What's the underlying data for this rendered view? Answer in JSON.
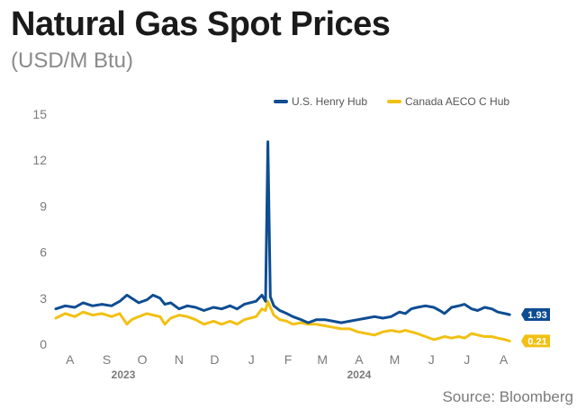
{
  "chart_data": {
    "type": "line",
    "title": "Natural Gas Spot Prices",
    "subtitle": "(USD/M Btu)",
    "source": "Source: Bloomberg",
    "ylim": [
      0,
      15
    ],
    "y_ticks": [
      0,
      3,
      6,
      9,
      12,
      15
    ],
    "y_tick_labels": [
      "0",
      "3",
      "6",
      "9",
      "12",
      "15"
    ],
    "x_tick_labels": [
      "A",
      "S",
      "O",
      "N",
      "D",
      "J",
      "F",
      "M",
      "A",
      "M",
      "J",
      "J",
      "A"
    ],
    "x_tick_dates": [
      "2023-08-01",
      "2023-09-01",
      "2023-10-01",
      "2023-11-01",
      "2023-12-01",
      "2024-01-01",
      "2024-02-01",
      "2024-03-01",
      "2024-04-01",
      "2024-05-01",
      "2024-06-01",
      "2024-07-01",
      "2024-08-01"
    ],
    "year_labels": [
      {
        "label": "2023",
        "date": "2023-09-15"
      },
      {
        "label": "2024",
        "date": "2024-04-01"
      }
    ],
    "x_range": [
      "2023-07-20",
      "2024-08-15"
    ],
    "legend_position": "top-right",
    "grid": false,
    "series": [
      {
        "name": "U.S. Henry Hub",
        "color": "#0e4d92",
        "end_label": "1.93",
        "points": [
          [
            "2023-07-20",
            2.3
          ],
          [
            "2023-07-28",
            2.5
          ],
          [
            "2023-08-05",
            2.4
          ],
          [
            "2023-08-12",
            2.7
          ],
          [
            "2023-08-20",
            2.5
          ],
          [
            "2023-08-28",
            2.6
          ],
          [
            "2023-09-05",
            2.5
          ],
          [
            "2023-09-12",
            2.8
          ],
          [
            "2023-09-18",
            3.2
          ],
          [
            "2023-09-22",
            3.0
          ],
          [
            "2023-09-28",
            2.7
          ],
          [
            "2023-10-05",
            2.9
          ],
          [
            "2023-10-10",
            3.2
          ],
          [
            "2023-10-16",
            3.0
          ],
          [
            "2023-10-20",
            2.6
          ],
          [
            "2023-10-25",
            2.7
          ],
          [
            "2023-11-01",
            2.3
          ],
          [
            "2023-11-08",
            2.5
          ],
          [
            "2023-11-15",
            2.4
          ],
          [
            "2023-11-22",
            2.2
          ],
          [
            "2023-11-30",
            2.4
          ],
          [
            "2023-12-07",
            2.3
          ],
          [
            "2023-12-14",
            2.5
          ],
          [
            "2023-12-20",
            2.3
          ],
          [
            "2023-12-26",
            2.6
          ],
          [
            "2024-01-05",
            2.8
          ],
          [
            "2024-01-10",
            3.2
          ],
          [
            "2024-01-13",
            2.8
          ],
          [
            "2024-01-15",
            13.2
          ],
          [
            "2024-01-17",
            3.1
          ],
          [
            "2024-01-20",
            2.5
          ],
          [
            "2024-01-25",
            2.2
          ],
          [
            "2024-01-31",
            2.0
          ],
          [
            "2024-02-05",
            1.8
          ],
          [
            "2024-02-12",
            1.6
          ],
          [
            "2024-02-18",
            1.4
          ],
          [
            "2024-02-25",
            1.6
          ],
          [
            "2024-03-03",
            1.6
          ],
          [
            "2024-03-10",
            1.5
          ],
          [
            "2024-03-17",
            1.4
          ],
          [
            "2024-03-24",
            1.5
          ],
          [
            "2024-03-31",
            1.6
          ],
          [
            "2024-04-07",
            1.7
          ],
          [
            "2024-04-14",
            1.8
          ],
          [
            "2024-04-21",
            1.7
          ],
          [
            "2024-04-28",
            1.8
          ],
          [
            "2024-05-05",
            2.1
          ],
          [
            "2024-05-10",
            2.0
          ],
          [
            "2024-05-15",
            2.3
          ],
          [
            "2024-05-20",
            2.4
          ],
          [
            "2024-05-27",
            2.5
          ],
          [
            "2024-06-03",
            2.4
          ],
          [
            "2024-06-08",
            2.2
          ],
          [
            "2024-06-12",
            2.0
          ],
          [
            "2024-06-18",
            2.4
          ],
          [
            "2024-06-24",
            2.5
          ],
          [
            "2024-06-29",
            2.6
          ],
          [
            "2024-07-05",
            2.3
          ],
          [
            "2024-07-10",
            2.2
          ],
          [
            "2024-07-16",
            2.4
          ],
          [
            "2024-07-22",
            2.3
          ],
          [
            "2024-07-27",
            2.1
          ],
          [
            "2024-08-02",
            2.0
          ],
          [
            "2024-08-06",
            1.93
          ]
        ]
      },
      {
        "name": "Canada AECO C Hub",
        "color": "#f2c014",
        "end_label": "0.21",
        "points": [
          [
            "2023-07-20",
            1.7
          ],
          [
            "2023-07-28",
            2.0
          ],
          [
            "2023-08-05",
            1.8
          ],
          [
            "2023-08-12",
            2.1
          ],
          [
            "2023-08-20",
            1.9
          ],
          [
            "2023-08-28",
            2.0
          ],
          [
            "2023-09-05",
            1.8
          ],
          [
            "2023-09-12",
            2.0
          ],
          [
            "2023-09-18",
            1.3
          ],
          [
            "2023-09-22",
            1.6
          ],
          [
            "2023-09-28",
            1.8
          ],
          [
            "2023-10-05",
            2.0
          ],
          [
            "2023-10-10",
            1.9
          ],
          [
            "2023-10-16",
            1.8
          ],
          [
            "2023-10-20",
            1.3
          ],
          [
            "2023-10-25",
            1.7
          ],
          [
            "2023-11-01",
            1.9
          ],
          [
            "2023-11-08",
            1.8
          ],
          [
            "2023-11-15",
            1.6
          ],
          [
            "2023-11-22",
            1.3
          ],
          [
            "2023-11-30",
            1.5
          ],
          [
            "2023-12-07",
            1.3
          ],
          [
            "2023-12-14",
            1.5
          ],
          [
            "2023-12-20",
            1.3
          ],
          [
            "2023-12-26",
            1.6
          ],
          [
            "2024-01-05",
            1.8
          ],
          [
            "2024-01-10",
            2.3
          ],
          [
            "2024-01-13",
            2.2
          ],
          [
            "2024-01-15",
            2.8
          ],
          [
            "2024-01-17",
            2.4
          ],
          [
            "2024-01-20",
            1.9
          ],
          [
            "2024-01-25",
            1.6
          ],
          [
            "2024-01-31",
            1.5
          ],
          [
            "2024-02-05",
            1.3
          ],
          [
            "2024-02-12",
            1.4
          ],
          [
            "2024-02-18",
            1.3
          ],
          [
            "2024-02-25",
            1.3
          ],
          [
            "2024-03-03",
            1.2
          ],
          [
            "2024-03-10",
            1.1
          ],
          [
            "2024-03-17",
            1.0
          ],
          [
            "2024-03-24",
            1.0
          ],
          [
            "2024-03-31",
            0.8
          ],
          [
            "2024-04-07",
            0.7
          ],
          [
            "2024-04-14",
            0.6
          ],
          [
            "2024-04-21",
            0.8
          ],
          [
            "2024-04-28",
            0.9
          ],
          [
            "2024-05-05",
            0.8
          ],
          [
            "2024-05-10",
            0.9
          ],
          [
            "2024-05-15",
            0.8
          ],
          [
            "2024-05-20",
            0.7
          ],
          [
            "2024-05-27",
            0.5
          ],
          [
            "2024-06-03",
            0.3
          ],
          [
            "2024-06-08",
            0.4
          ],
          [
            "2024-06-12",
            0.5
          ],
          [
            "2024-06-18",
            0.4
          ],
          [
            "2024-06-24",
            0.5
          ],
          [
            "2024-06-29",
            0.4
          ],
          [
            "2024-07-05",
            0.7
          ],
          [
            "2024-07-10",
            0.6
          ],
          [
            "2024-07-16",
            0.5
          ],
          [
            "2024-07-22",
            0.5
          ],
          [
            "2024-07-27",
            0.4
          ],
          [
            "2024-08-02",
            0.3
          ],
          [
            "2024-08-06",
            0.21
          ]
        ]
      }
    ]
  }
}
